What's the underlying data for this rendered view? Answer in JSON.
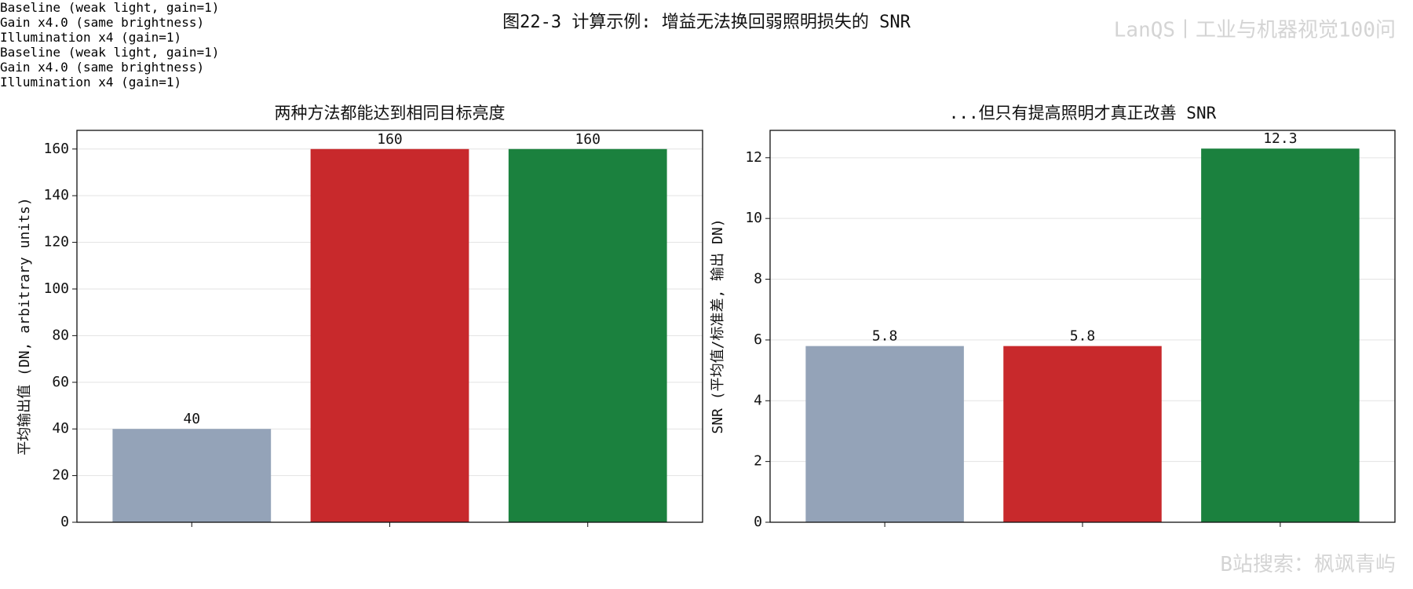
{
  "title": "图22-3  计算示例: 增益无法换回弱照明损失的 SNR",
  "watermarks": [
    "LanQS丨工业与机器视觉100问",
    "B站搜索：枫飒青屿"
  ],
  "chart_data": [
    {
      "type": "bar",
      "title": "两种方法都能达到相同目标亮度",
      "ylabel": "平均输出值 (DN, arbitrary units)",
      "categories": [
        "Baseline\n(weak light, gain=1)",
        "Gain x4.0\n(same brightness)",
        "Illumination x4\n(gain=1)"
      ],
      "values": [
        40,
        160,
        160
      ],
      "colors": [
        "#94a3b8",
        "#c8292c",
        "#1b813e"
      ],
      "ylim": [
        0,
        168
      ],
      "yticks": [
        0,
        20,
        40,
        60,
        80,
        100,
        120,
        140,
        160
      ],
      "grid": true
    },
    {
      "type": "bar",
      "title": "...但只有提高照明才真正改善 SNR",
      "ylabel": "SNR (平均值/标准差, 输出 DN)",
      "categories": [
        "Baseline\n(weak light, gain=1)",
        "Gain x4.0\n(same brightness)",
        "Illumination x4\n(gain=1)"
      ],
      "values": [
        5.8,
        5.8,
        12.3
      ],
      "colors": [
        "#94a3b8",
        "#c8292c",
        "#1b813e"
      ],
      "ylim": [
        0,
        12.9
      ],
      "yticks": [
        0,
        2,
        4,
        6,
        8,
        10,
        12
      ],
      "grid": true
    }
  ]
}
